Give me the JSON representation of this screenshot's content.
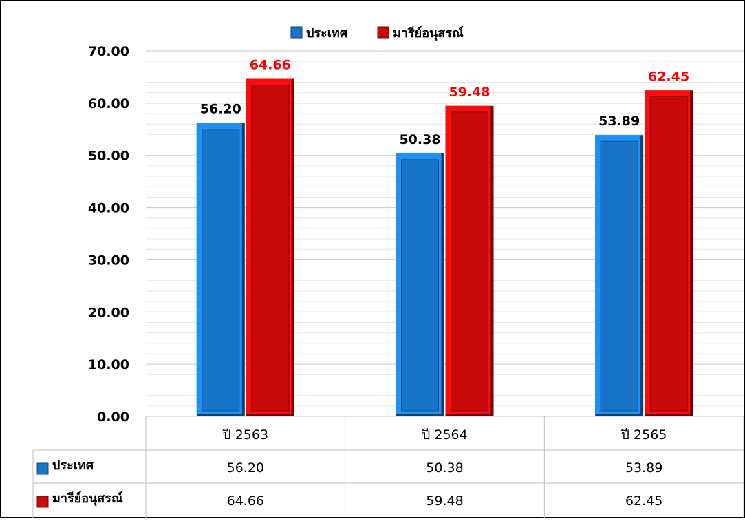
{
  "chart_data": {
    "type": "bar",
    "title": "",
    "xlabel": "",
    "ylabel": "",
    "categories": [
      "ปี 2563",
      "ปี 2564",
      "ปี 2565"
    ],
    "series": [
      {
        "name": "ประเทศ",
        "values": [
          56.2,
          50.38,
          53.89
        ],
        "labels": [
          "56.20",
          "50.38",
          "53.89"
        ],
        "color": "#1874C6",
        "label_color": "#000000"
      },
      {
        "name": "มารีย์อนุสรณ์",
        "values": [
          64.66,
          59.48,
          62.45
        ],
        "labels": [
          "64.66",
          "59.48",
          "62.45"
        ],
        "color": "#C80A0A",
        "label_color": "#FF0000"
      }
    ],
    "ylim": [
      0,
      70
    ],
    "yticks": [
      "0.00",
      "10.00",
      "20.00",
      "30.00",
      "40.00",
      "50.00",
      "60.00",
      "70.00"
    ],
    "grid": true,
    "legend": "top-center",
    "data_table": true
  }
}
